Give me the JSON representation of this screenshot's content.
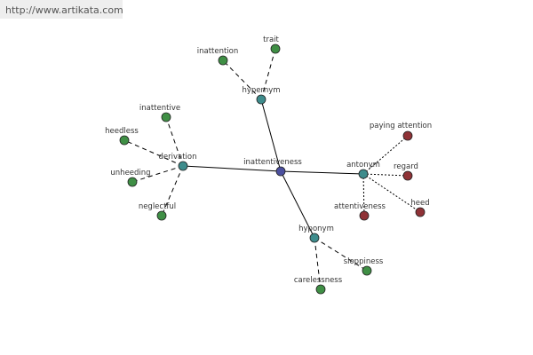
{
  "url": "http://www.artikata.com",
  "nodes": [
    {
      "label": "inattentiveness"
    },
    {
      "label": "hypernym"
    },
    {
      "label": "inattention"
    },
    {
      "label": "trait"
    },
    {
      "label": "derivation"
    },
    {
      "label": "inattentive"
    },
    {
      "label": "heedless"
    },
    {
      "label": "unheeding"
    },
    {
      "label": "neglectful"
    },
    {
      "label": "antonym"
    },
    {
      "label": "paying attention"
    },
    {
      "label": "regard"
    },
    {
      "label": "heed"
    },
    {
      "label": "attentiveness"
    },
    {
      "label": "hyponym"
    },
    {
      "label": "sloppiness"
    },
    {
      "label": "carelessness"
    }
  ]
}
